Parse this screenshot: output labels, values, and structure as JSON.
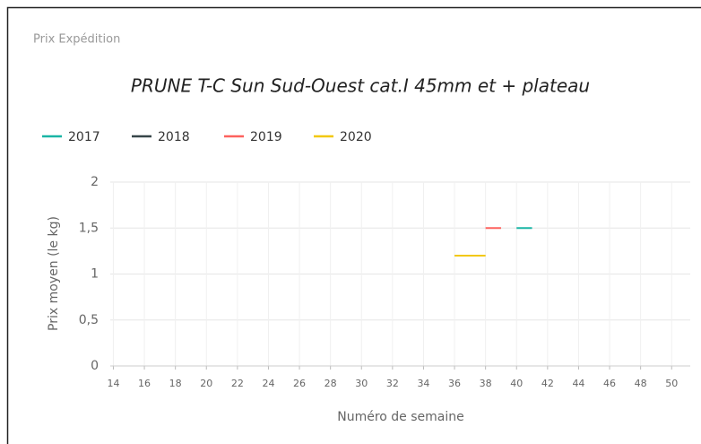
{
  "header": "Prix Expédition",
  "chart_data": {
    "type": "line",
    "title": "PRUNE T-C Sun Sud-Ouest cat.I 45mm et + plateau",
    "xlabel": "Numéro de semaine",
    "ylabel": "Prix moyen  (le kg)",
    "xlim": [
      13.8,
      51.2
    ],
    "xticks": [
      14,
      16,
      18,
      20,
      22,
      24,
      26,
      28,
      30,
      32,
      34,
      36,
      38,
      40,
      42,
      44,
      46,
      48,
      50
    ],
    "ylim": [
      0,
      2
    ],
    "yticks": [
      0,
      {
        "value": 0.5,
        "label": "0,5"
      },
      1,
      {
        "value": 1.5,
        "label": "1,5"
      },
      2
    ],
    "grid": true,
    "legend": "top-left",
    "series": [
      {
        "name": "2017",
        "color": "#1ab5a5",
        "x": [
          40,
          41
        ],
        "values": [
          1.5,
          1.5
        ]
      },
      {
        "name": "2018",
        "color": "#374649",
        "x": [],
        "values": []
      },
      {
        "name": "2019",
        "color": "#fd625e",
        "x": [
          38,
          39
        ],
        "values": [
          1.5,
          1.5
        ]
      },
      {
        "name": "2020",
        "color": "#f2c80f",
        "x": [
          36,
          38
        ],
        "values": [
          1.2,
          1.2
        ]
      }
    ]
  }
}
